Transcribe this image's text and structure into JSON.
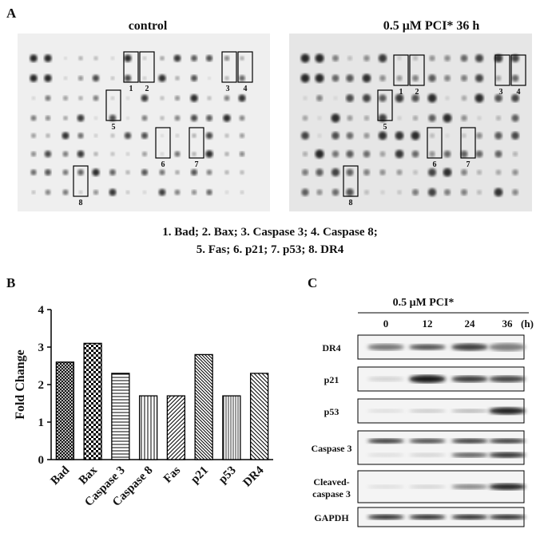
{
  "panel_a": {
    "label": "A",
    "titles": [
      "control",
      "0.5 μM PCI* 36 h"
    ],
    "box_labels": [
      "1",
      "2",
      "3",
      "4",
      "5",
      "6",
      "7",
      "8"
    ],
    "caption": [
      "1. Bad; 2. Bax; 3. Caspase 3; 4. Caspase 8;",
      "5. Fas; 6. p21; 7. p53; 8. DR4"
    ]
  },
  "panel_b": {
    "label": "B"
  },
  "panel_c": {
    "label": "C",
    "treatment": "0.5 μM PCI*",
    "times": [
      "0",
      "12",
      "24",
      "36"
    ],
    "time_unit": "(h)",
    "rows": [
      "DR4",
      "p21",
      "p53",
      "Caspase 3",
      [
        "Cleaved-",
        "caspase 3"
      ],
      "GAPDH"
    ]
  },
  "chart_data": {
    "type": "bar",
    "y_label": "Fold Change",
    "categories": [
      "Bad",
      "Bax",
      "Caspase 3",
      "Caspase 8",
      "Fas",
      "p21",
      "p53",
      "DR4"
    ],
    "values": [
      2.6,
      3.1,
      2.3,
      1.7,
      1.7,
      2.8,
      1.7,
      2.3
    ],
    "color": "#000000",
    "ylim": [
      0,
      4
    ],
    "yticks": [
      0,
      1,
      2,
      3,
      4
    ]
  }
}
